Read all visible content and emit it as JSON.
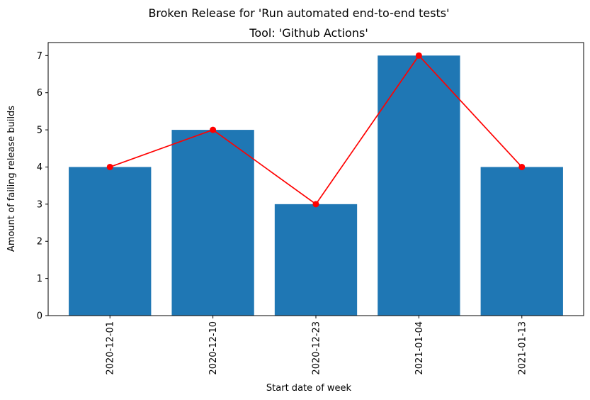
{
  "chart_data": {
    "type": "bar",
    "suptitle": "Broken Release for 'Run automated end-to-end tests'",
    "title": "Tool: 'Github Actions'",
    "xlabel": "Start date of week",
    "ylabel": "Amount of failing release builds",
    "categories": [
      "2020-12-01",
      "2020-12-10",
      "2020-12-23",
      "2021-01-04",
      "2021-01-13"
    ],
    "values": [
      4,
      5,
      3,
      7,
      4
    ],
    "overlay_line": {
      "values": [
        4,
        5,
        3,
        7,
        4
      ],
      "color": "#ff0000",
      "marker": "circle"
    },
    "bar_color": "#1f77b4",
    "ylim": [
      0,
      7.35
    ],
    "yticks": [
      0,
      1,
      2,
      3,
      4,
      5,
      6,
      7
    ],
    "grid": false,
    "legend": "none"
  }
}
